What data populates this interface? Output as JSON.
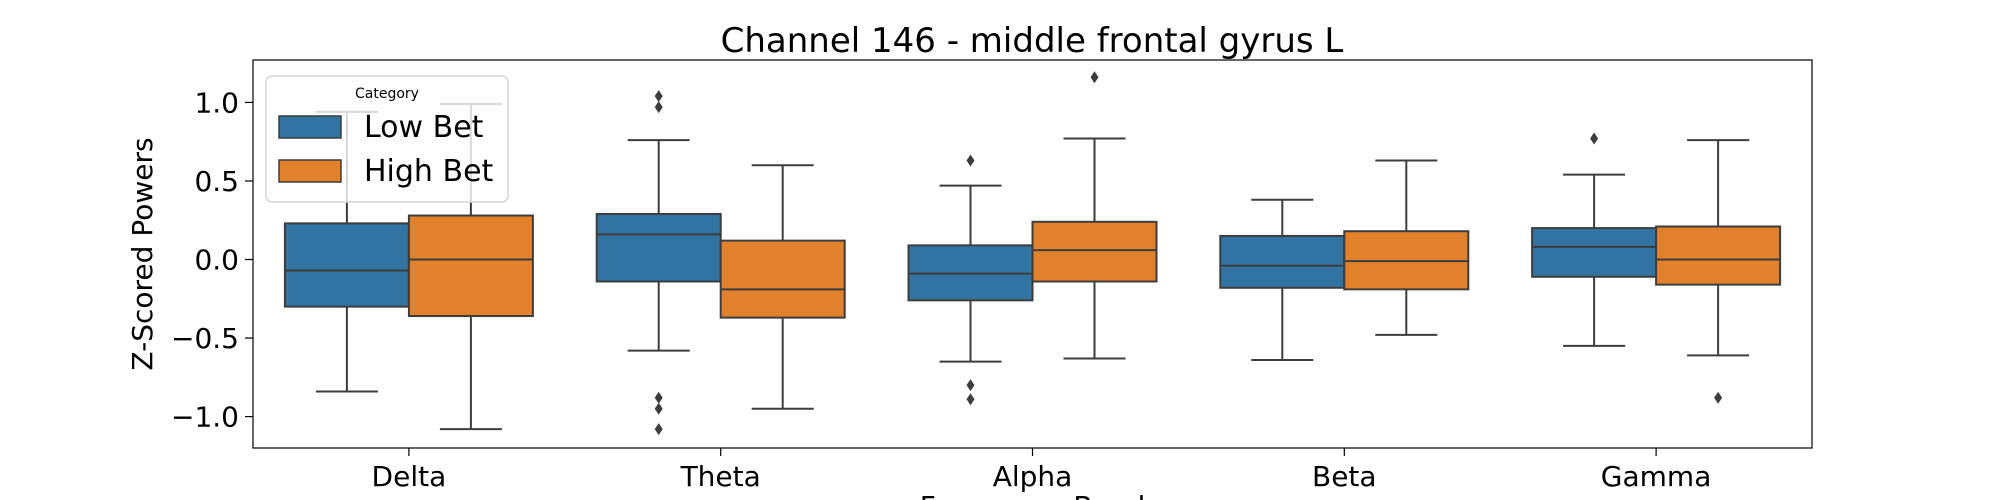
{
  "chart_data": {
    "type": "box",
    "title": "Channel 146 - middle frontal gyrus L",
    "xlabel": "Frequency Band",
    "ylabel": "Z-Scored Powers",
    "categories": [
      "Delta",
      "Theta",
      "Alpha",
      "Beta",
      "Gamma"
    ],
    "ylim": [
      -1.2,
      1.27
    ],
    "yticks": [
      1.0,
      0.5,
      0.0,
      -0.5,
      -1.0
    ],
    "ytick_labels": [
      "1.0",
      "0.5",
      "0.0",
      "−0.5",
      "−1.0"
    ],
    "legend": {
      "title": "Category",
      "position": "top-left"
    },
    "series": [
      {
        "name": "Low Bet",
        "color": "#3274a1",
        "boxes": [
          {
            "whislo": -0.84,
            "q1": -0.3,
            "med": -0.07,
            "q3": 0.23,
            "whishi": 0.94,
            "fliers": []
          },
          {
            "whislo": -0.58,
            "q1": -0.14,
            "med": 0.16,
            "q3": 0.29,
            "whishi": 0.76,
            "fliers": [
              1.04,
              0.97,
              -0.88,
              -0.95,
              -1.08
            ]
          },
          {
            "whislo": -0.65,
            "q1": -0.26,
            "med": -0.09,
            "q3": 0.09,
            "whishi": 0.47,
            "fliers": [
              0.63,
              -0.8,
              -0.89
            ]
          },
          {
            "whislo": -0.64,
            "q1": -0.18,
            "med": -0.04,
            "q3": 0.15,
            "whishi": 0.38,
            "fliers": []
          },
          {
            "whislo": -0.55,
            "q1": -0.11,
            "med": 0.08,
            "q3": 0.2,
            "whishi": 0.54,
            "fliers": [
              0.77
            ]
          }
        ]
      },
      {
        "name": "High Bet",
        "color": "#e1812c",
        "boxes": [
          {
            "whislo": -1.08,
            "q1": -0.36,
            "med": 0.0,
            "q3": 0.28,
            "whishi": 0.99,
            "fliers": []
          },
          {
            "whislo": -0.95,
            "q1": -0.37,
            "med": -0.19,
            "q3": 0.12,
            "whishi": 0.6,
            "fliers": []
          },
          {
            "whislo": -0.63,
            "q1": -0.14,
            "med": 0.06,
            "q3": 0.24,
            "whishi": 0.77,
            "fliers": [
              1.16
            ]
          },
          {
            "whislo": -0.48,
            "q1": -0.19,
            "med": -0.01,
            "q3": 0.18,
            "whishi": 0.63,
            "fliers": []
          },
          {
            "whislo": -0.61,
            "q1": -0.16,
            "med": 0.0,
            "q3": 0.21,
            "whishi": 0.76,
            "fliers": [
              -0.88
            ]
          }
        ]
      }
    ]
  }
}
